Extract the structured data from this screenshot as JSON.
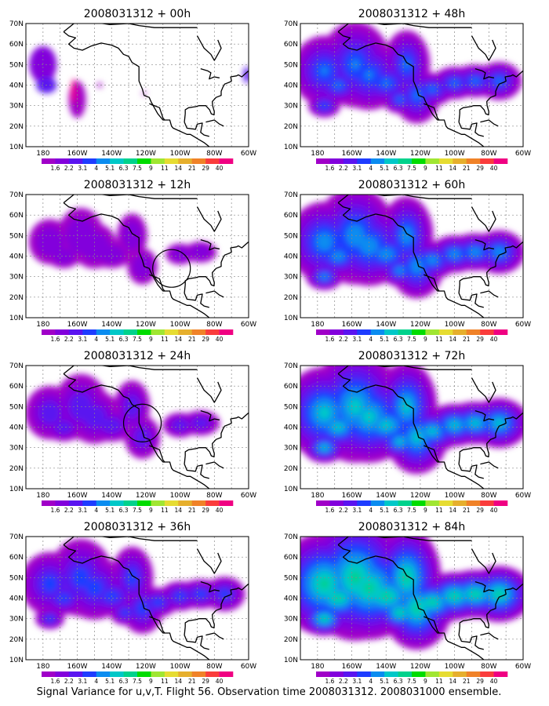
{
  "caption": "Signal Variance for u,v,T. Flight 56. Observation time 2008031312. 2008031000 ensemble.",
  "lat_labels": [
    "70N",
    "60N",
    "50N",
    "40N",
    "30N",
    "20N",
    "10N"
  ],
  "lon_labels": [
    "180",
    "160W",
    "140W",
    "120W",
    "100W",
    "80W",
    "60W"
  ],
  "colorbar": {
    "labels": [
      "1.6",
      "2.2",
      "3.1",
      "4",
      "5.1",
      "6.3",
      "7.5",
      "9",
      "11",
      "14",
      "21",
      "29",
      "40"
    ],
    "colors": [
      "#a000c8",
      "#8200dc",
      "#5a14f0",
      "#1e3cff",
      "#0a8cf0",
      "#00c8c8",
      "#00d28c",
      "#00dc00",
      "#a0e632",
      "#e6dc32",
      "#e6af2d",
      "#f08228",
      "#fa3c3c",
      "#f00082"
    ]
  },
  "panels": [
    {
      "title": "2008031312 + 00h",
      "level": 0,
      "circle": null
    },
    {
      "title": "2008031312 + 12h",
      "level": 0.5,
      "circle": [
        105,
        34
      ]
    },
    {
      "title": "2008031312 + 24h",
      "level": 1.0,
      "circle": [
        122,
        42
      ]
    },
    {
      "title": "2008031312 + 36h",
      "level": 1.6,
      "circle": null
    },
    {
      "title": "2008031312 + 48h",
      "level": 2.0,
      "circle": null
    },
    {
      "title": "2008031312 + 60h",
      "level": 2.6,
      "circle": null
    },
    {
      "title": "2008031312 + 72h",
      "level": 3.3,
      "circle": null
    },
    {
      "title": "2008031312 + 84h",
      "level": 4.0,
      "circle": null
    }
  ]
}
